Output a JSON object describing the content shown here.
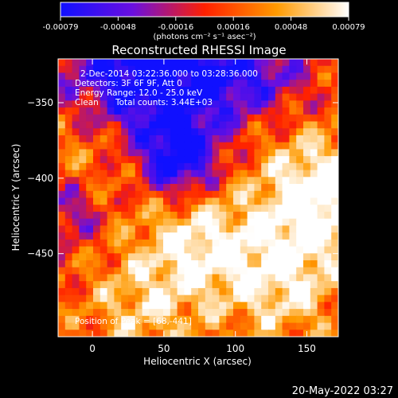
{
  "colorbar": {
    "tick_labels": [
      "-0.00079",
      "-0.00048",
      "-0.00016",
      "0.00016",
      "0.00048",
      "0.00079"
    ],
    "units": "(photons cm⁻² s⁻¹ asec⁻²)",
    "colormap": [
      "#1010ff",
      "#6a0fe0",
      "#ff2000",
      "#ff9a00",
      "#ffffff"
    ]
  },
  "chart_data": {
    "type": "heatmap",
    "title": "Reconstructed RHESSI Image",
    "xlabel": "Heliocentric X (arcsec)",
    "ylabel": "Heliocentric Y (arcsec)",
    "x_ticks": [
      0,
      50,
      100,
      150
    ],
    "y_ticks": [
      -350,
      -400,
      -450
    ],
    "xlim": [
      -24,
      172
    ],
    "ylim": [
      -505,
      -321
    ],
    "value_range": [
      -0.00079,
      0.00079
    ],
    "peak": {
      "x": 68,
      "y": -441
    },
    "annotations": {
      "time_range": "2-Dec-2014 03:22:36.000 to 03:28:36.000",
      "detectors": "Detectors: 3F 6F 9F, Att 0",
      "energy": "Energy Range: 12.0 - 25.0 keV",
      "method": "Clean",
      "counts": "Total counts: 3.44E+03",
      "peak_label": "Position of Peak = [68,-441]"
    }
  },
  "footer": {
    "date": "20-May-2022 03:27"
  }
}
